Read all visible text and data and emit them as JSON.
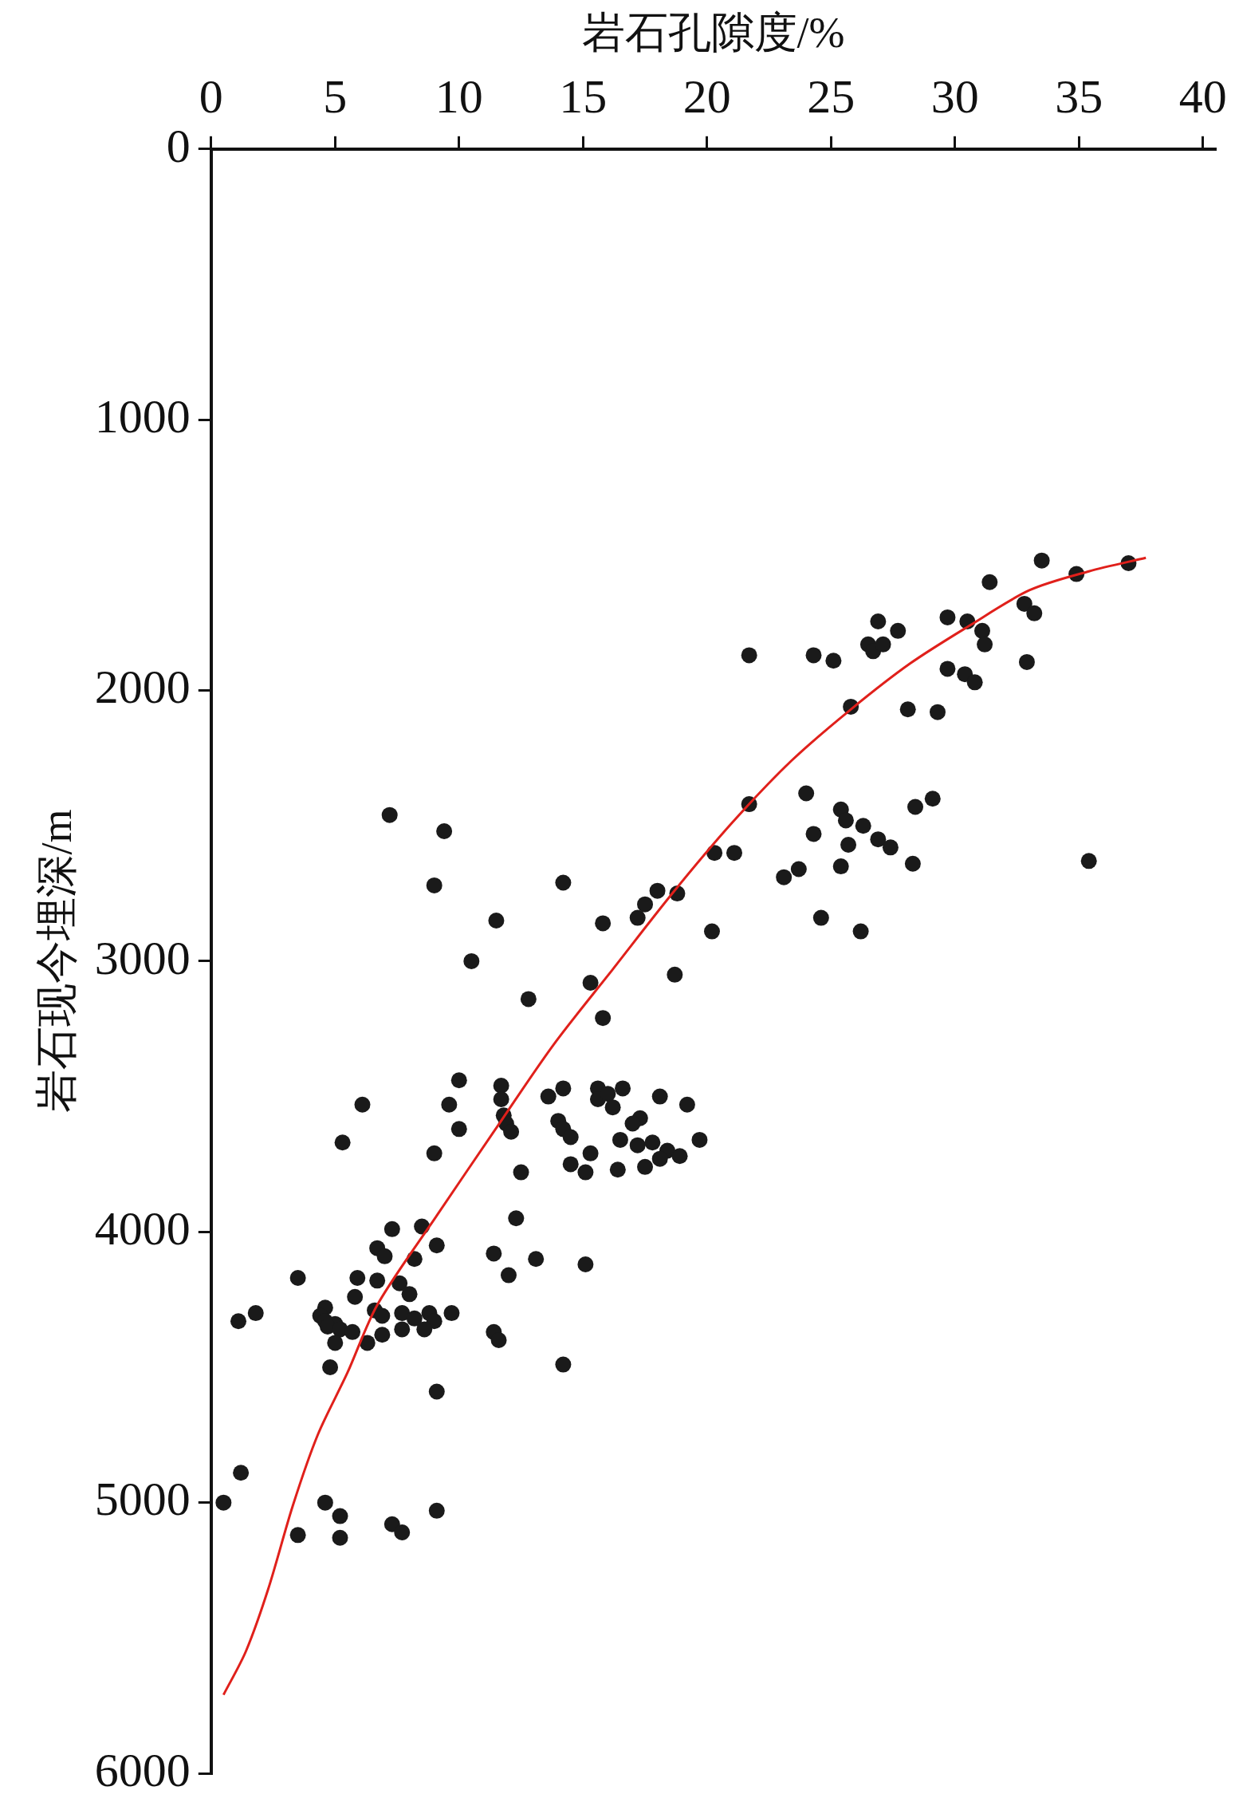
{
  "chart_data": {
    "type": "scatter",
    "xlabel": "岩石孔隙度/%",
    "ylabel": "岩石现今埋深/m",
    "xlim": [
      0,
      40.5
    ],
    "xticks": [
      0,
      5,
      10,
      15,
      20,
      25,
      30,
      35,
      40
    ],
    "ylim": [
      6000,
      0
    ],
    "yticks": [
      0,
      1000,
      2000,
      3000,
      4000,
      5000,
      6000
    ],
    "grid": false,
    "legend": false,
    "marker": "circle",
    "series": [
      {
        "type": "scatter",
        "color": "#1a1a1a",
        "x": [
          33.5,
          34.9,
          37.0,
          31.4,
          32.8,
          33.2,
          29.7,
          30.5,
          31.1,
          31.2,
          26.9,
          27.7,
          26.5,
          26.7,
          27.1,
          32.9,
          29.7,
          30.4,
          30.8,
          21.7,
          24.3,
          25.1,
          25.8,
          28.1,
          29.3,
          21.7,
          24.0,
          25.4,
          25.6,
          26.3,
          29.1,
          28.4,
          24.3,
          25.7,
          26.9,
          27.4,
          20.3,
          21.1,
          25.4,
          28.3,
          35.4,
          23.1,
          23.7,
          24.6,
          26.2,
          20.2,
          7.2,
          9.4,
          14.2,
          9.0,
          18.0,
          17.5,
          17.2,
          18.8,
          15.8,
          11.5,
          10.5,
          18.7,
          15.3,
          12.8,
          15.8,
          10.0,
          11.7,
          9.6,
          6.1,
          11.7,
          11.8,
          11.9,
          12.1,
          10.0,
          5.3,
          9.0,
          12.5,
          13.6,
          14.2,
          15.6,
          16.6,
          15.6,
          16.0,
          16.2,
          18.1,
          19.2,
          17.3,
          17.0,
          14.0,
          14.2,
          14.5,
          16.5,
          19.7,
          15.3,
          17.2,
          17.8,
          18.4,
          18.9,
          18.1,
          17.5,
          16.4,
          14.5,
          15.1,
          12.3,
          7.3,
          8.5,
          6.7,
          9.1,
          7.0,
          8.2,
          11.4,
          13.1,
          15.1,
          3.5,
          5.9,
          6.7,
          7.6,
          12.0,
          8.0,
          5.8,
          6.6,
          4.6,
          1.8,
          1.1,
          4.4,
          5.0,
          6.9,
          7.7,
          8.2,
          8.8,
          9.0,
          9.7,
          4.6,
          4.7,
          5.2,
          5.7,
          6.9,
          7.7,
          8.6,
          6.3,
          5.0,
          11.4,
          11.6,
          4.8,
          14.2,
          9.1,
          1.2,
          0.5,
          4.6,
          5.2,
          9.1,
          7.3,
          7.7,
          3.5,
          5.2
        ],
        "values": [
          1520,
          1570,
          1530,
          1600,
          1680,
          1715,
          1730,
          1745,
          1780,
          1830,
          1745,
          1780,
          1830,
          1855,
          1830,
          1895,
          1920,
          1940,
          1970,
          1870,
          1870,
          1890,
          2060,
          2070,
          2080,
          2420,
          2380,
          2440,
          2480,
          2500,
          2400,
          2430,
          2530,
          2570,
          2550,
          2580,
          2600,
          2600,
          2650,
          2640,
          2630,
          2690,
          2660,
          2840,
          2890,
          2890,
          2460,
          2520,
          2710,
          2720,
          2740,
          2790,
          2840,
          2750,
          2860,
          2850,
          3000,
          3050,
          3080,
          3140,
          3210,
          3440,
          3460,
          3530,
          3530,
          3510,
          3570,
          3600,
          3630,
          3620,
          3670,
          3710,
          3780,
          3500,
          3470,
          3470,
          3470,
          3510,
          3490,
          3540,
          3500,
          3530,
          3580,
          3600,
          3590,
          3620,
          3650,
          3660,
          3660,
          3710,
          3680,
          3670,
          3700,
          3720,
          3730,
          3760,
          3770,
          3750,
          3780,
          3950,
          3990,
          3980,
          4060,
          4050,
          4090,
          4100,
          4080,
          4100,
          4120,
          4170,
          4170,
          4180,
          4190,
          4160,
          4230,
          4240,
          4290,
          4280,
          4300,
          4330,
          4310,
          4340,
          4310,
          4300,
          4320,
          4300,
          4330,
          4300,
          4330,
          4350,
          4360,
          4370,
          4380,
          4360,
          4360,
          4410,
          4410,
          4370,
          4400,
          4500,
          4490,
          4590,
          4890,
          5000,
          5000,
          5050,
          5030,
          5080,
          5110,
          5120,
          5130
        ]
      },
      {
        "type": "line",
        "color": "#e0201b",
        "marker": "none",
        "line_style": "solid",
        "x": [
          37.7,
          35.4,
          33.0,
          30.6,
          28.2,
          25.8,
          23.4,
          21.0,
          18.6,
          16.2,
          13.8,
          11.4,
          9.1,
          6.7,
          5.5,
          4.3,
          3.3,
          2.3,
          1.4,
          0.5
        ],
        "values": [
          1510,
          1560,
          1630,
          1760,
          1900,
          2070,
          2260,
          2490,
          2750,
          3030,
          3310,
          3630,
          3940,
          4270,
          4520,
          4750,
          5010,
          5320,
          5550,
          5710
        ]
      }
    ]
  }
}
